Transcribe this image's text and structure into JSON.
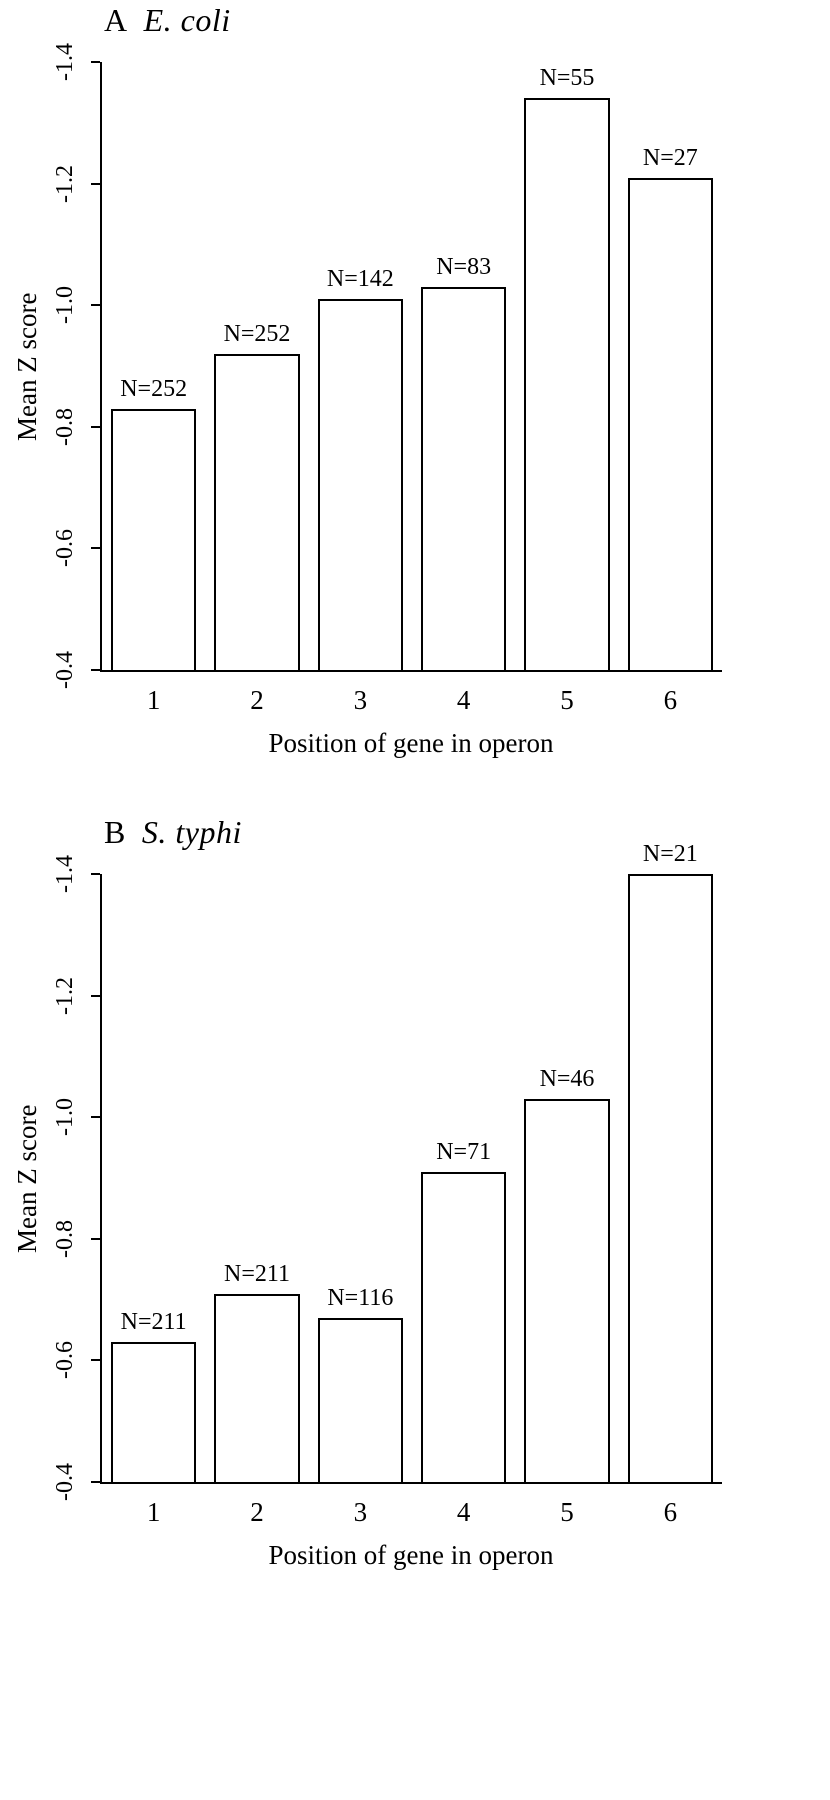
{
  "chart_data": [
    {
      "type": "bar",
      "panel_label": "A",
      "title": "E. coli",
      "categories": [
        "1",
        "2",
        "3",
        "4",
        "5",
        "6"
      ],
      "values": [
        -0.83,
        -0.92,
        -1.01,
        -1.03,
        -1.34,
        -1.21
      ],
      "bar_labels": [
        "N=252",
        "N=252",
        "N=142",
        "N=83",
        "N=55",
        "N=27"
      ],
      "xlabel": "Position of gene in operon",
      "ylabel": "Mean Z score",
      "ylim": [
        -0.4,
        -1.4
      ],
      "yticks": [
        -0.4,
        -0.6,
        -0.8,
        -1.0,
        -1.2,
        -1.4
      ],
      "ytick_labels": [
        "-0.4",
        "-0.6",
        "-0.8",
        "-1.0",
        "-1.2",
        "-1.4"
      ],
      "grid": false,
      "legend": false,
      "bar_fill": "#ffffff",
      "bar_stroke": "#000000"
    },
    {
      "type": "bar",
      "panel_label": "B",
      "title": "S. typhi",
      "categories": [
        "1",
        "2",
        "3",
        "4",
        "5",
        "6"
      ],
      "values": [
        -0.63,
        -0.71,
        -0.67,
        -0.91,
        -1.03,
        -1.4
      ],
      "bar_labels": [
        "N=211",
        "N=211",
        "N=116",
        "N=71",
        "N=46",
        "N=21"
      ],
      "xlabel": "Position of gene in operon",
      "ylabel": "Mean Z score",
      "ylim": [
        -0.4,
        -1.4
      ],
      "yticks": [
        -0.4,
        -0.6,
        -0.8,
        -1.0,
        -1.2,
        -1.4
      ],
      "ytick_labels": [
        "-0.4",
        "-0.6",
        "-0.8",
        "-1.0",
        "-1.2",
        "-1.4"
      ],
      "grid": false,
      "legend": false,
      "bar_fill": "#ffffff",
      "bar_stroke": "#000000"
    }
  ]
}
